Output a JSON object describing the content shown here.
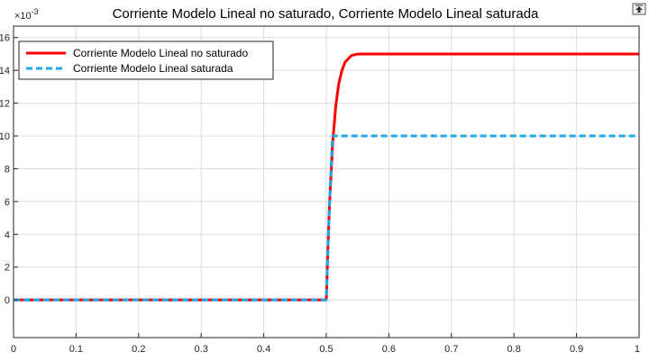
{
  "chart_data": {
    "type": "line",
    "title": "Corriente Modelo Lineal no saturado, Corriente Modelo Lineal saturada",
    "xlabel": "",
    "ylabel": "",
    "xlim": [
      0,
      1
    ],
    "ylim": [
      -0.0023,
      0.0167
    ],
    "y_exponent_label": "×10-3",
    "x_ticks": [
      "0",
      "0.1",
      "0.2",
      "0.3",
      "0.4",
      "0.5",
      "0.6",
      "0.7",
      "0.8",
      "0.9",
      "1"
    ],
    "y_ticks": [
      "0",
      "2",
      "4",
      "6",
      "8",
      "10",
      "12",
      "14",
      "16"
    ],
    "grid": true,
    "legend_position": "top-left",
    "series": [
      {
        "name": "Corriente Modelo Lineal no saturado",
        "color": "#ff0000",
        "style": "solid",
        "x": [
          0,
          0.5,
          0.502,
          0.505,
          0.51,
          0.515,
          0.52,
          0.525,
          0.53,
          0.54,
          0.55,
          0.57,
          0.6,
          0.7,
          0.8,
          0.9,
          1
        ],
        "y": [
          0,
          0,
          0.0025,
          0.0057,
          0.0095,
          0.0118,
          0.0132,
          0.014,
          0.0145,
          0.0149,
          0.015,
          0.015,
          0.015,
          0.015,
          0.015,
          0.015,
          0.015
        ]
      },
      {
        "name": "Corriente Modelo Lineal saturada",
        "color": "#1fa8e8",
        "style": "dashed",
        "x": [
          0,
          0.5,
          0.502,
          0.505,
          0.508,
          0.51,
          0.52,
          0.6,
          0.7,
          0.8,
          0.9,
          1
        ],
        "y": [
          0,
          0,
          0.0025,
          0.0057,
          0.0085,
          0.01,
          0.01,
          0.01,
          0.01,
          0.01,
          0.01,
          0.01
        ]
      }
    ]
  },
  "toolbar": {
    "icon": "export-icon"
  }
}
